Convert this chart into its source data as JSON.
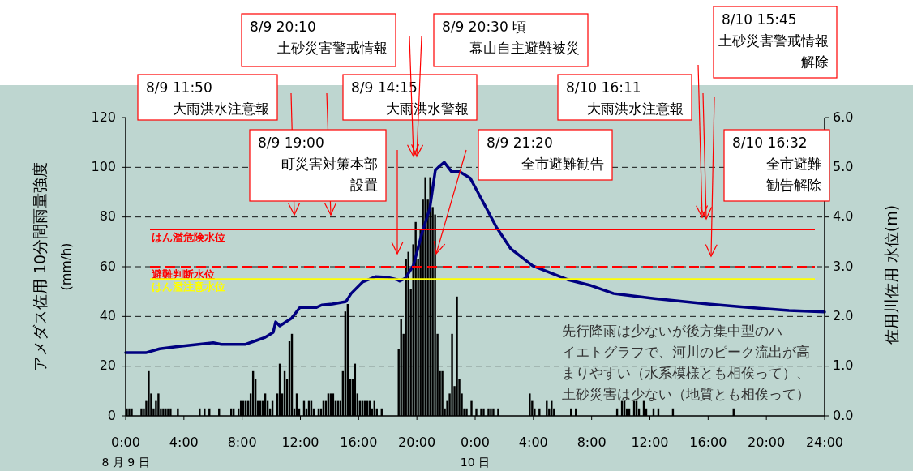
{
  "chart_data": {
    "type": "bar",
    "xlim": [
      "--08-09T00:00",
      "--08-11T00:00"
    ],
    "xticks": [
      {
        "value": "--08-09T00:00",
        "label": "0:00\n8 月 9 日"
      },
      {
        "value": "--08-09T04:00",
        "label": "4:00"
      },
      {
        "value": "--08-09T08:00",
        "label": "8:00"
      },
      {
        "value": "--08-09T12:00",
        "label": "12:00"
      },
      {
        "value": "--08-09T16:00",
        "label": "16:00"
      },
      {
        "value": "--08-09T20:00",
        "label": "20:00"
      },
      {
        "value": "--08-10T00:00",
        "label": "0:00\n10 日"
      },
      {
        "value": "--08-10T04:00",
        "label": "4:00"
      },
      {
        "value": "--08-10T08:00",
        "label": "8:00"
      },
      {
        "value": "--08-10T12:00",
        "label": "12:00"
      },
      {
        "value": "--08-10T16:00",
        "label": "16:00"
      },
      {
        "value": "--08-10T20:00",
        "label": "20:00"
      },
      {
        "value": "--08-11T00:00",
        "label": "24:00"
      }
    ],
    "ylim": [
      0,
      120
    ],
    "yticks": [
      0,
      20,
      40,
      60,
      80,
      100,
      120
    ],
    "y2lim": [
      0,
      6
    ],
    "y2ticks": [
      {
        "value": 0,
        "label": "0.0"
      },
      {
        "value": 1,
        "label": "1.0"
      },
      {
        "value": 2,
        "label": "2.0"
      },
      {
        "value": 3,
        "label": "3.0"
      },
      {
        "value": 4,
        "label": "4.0"
      },
      {
        "value": 5,
        "label": "5.0"
      },
      {
        "value": 6,
        "label": "6.0"
      }
    ],
    "ylabel": "アメダス佐用  10分間雨量強度\n(mm/h)",
    "y2label": "佐用川佐用  水位(m)",
    "grid": "y",
    "series": [
      {
        "color": "#000000",
        "x": [
          "--08-09T00:00",
          "--08-09T00:10",
          "--08-09T00:20",
          "--08-09T01:00",
          "--08-09T01:10",
          "--08-09T01:20",
          "--08-09T01:30",
          "--08-09T01:40",
          "--08-09T01:50",
          "--08-09T02:00",
          "--08-09T02:10",
          "--08-09T02:20",
          "--08-09T02:30",
          "--08-09T02:40",
          "--08-09T02:50",
          "--08-09T03:00",
          "--08-09T03:30",
          "--08-09T05:00",
          "--08-09T05:20",
          "--08-09T05:40",
          "--08-09T06:20",
          "--08-09T07:10",
          "--08-09T07:20",
          "--08-09T07:40",
          "--08-09T07:50",
          "--08-09T08:00",
          "--08-09T08:10",
          "--08-09T08:20",
          "--08-09T08:30",
          "--08-09T08:40",
          "--08-09T08:50",
          "--08-09T09:00",
          "--08-09T09:10",
          "--08-09T09:20",
          "--08-09T09:30",
          "--08-09T09:40",
          "--08-09T09:50",
          "--08-09T10:00",
          "--08-09T10:20",
          "--08-09T10:30",
          "--08-09T10:40",
          "--08-09T10:50",
          "--08-09T11:00",
          "--08-09T11:10",
          "--08-09T11:20",
          "--08-09T11:30",
          "--08-09T11:40",
          "--08-09T11:50",
          "--08-09T12:10",
          "--08-09T12:20",
          "--08-09T12:30",
          "--08-09T12:40",
          "--08-09T12:50",
          "--08-09T13:10",
          "--08-09T13:20",
          "--08-09T13:30",
          "--08-09T13:40",
          "--08-09T13:50",
          "--08-09T14:00",
          "--08-09T14:10",
          "--08-09T14:20",
          "--08-09T14:30",
          "--08-09T14:40",
          "--08-09T14:50",
          "--08-09T15:00",
          "--08-09T15:10",
          "--08-09T15:20",
          "--08-09T15:30",
          "--08-09T15:40",
          "--08-09T15:50",
          "--08-09T16:00",
          "--08-09T16:10",
          "--08-09T16:20",
          "--08-09T16:30",
          "--08-09T16:40",
          "--08-09T16:50",
          "--08-09T17:00",
          "--08-09T17:10",
          "--08-09T17:30",
          "--08-09T18:40",
          "--08-09T18:50",
          "--08-09T19:00",
          "--08-09T19:10",
          "--08-09T19:20",
          "--08-09T19:30",
          "--08-09T19:40",
          "--08-09T19:50",
          "--08-09T20:00",
          "--08-09T20:10",
          "--08-09T20:20",
          "--08-09T20:30",
          "--08-09T20:40",
          "--08-09T20:50",
          "--08-09T21:00",
          "--08-09T21:10",
          "--08-09T21:20",
          "--08-09T21:30",
          "--08-09T21:40",
          "--08-09T21:50",
          "--08-09T22:00",
          "--08-09T22:10",
          "--08-09T22:20",
          "--08-09T22:30",
          "--08-09T22:40",
          "--08-09T22:50",
          "--08-09T23:00",
          "--08-09T23:10",
          "--08-09T23:20",
          "--08-09T23:40",
          "--08-10T00:00",
          "--08-10T00:20",
          "--08-10T00:30",
          "--08-10T00:50",
          "--08-10T01:00",
          "--08-10T01:10",
          "--08-10T01:30",
          "--08-10T03:40",
          "--08-10T03:50",
          "--08-10T04:00",
          "--08-10T04:20",
          "--08-10T04:50",
          "--08-10T05:00",
          "--08-10T05:10",
          "--08-10T05:20",
          "--08-10T06:30",
          "--08-10T06:50",
          "--08-10T09:40",
          "--08-10T10:00",
          "--08-10T10:10",
          "--08-10T10:20",
          "--08-10T10:30",
          "--08-10T10:50",
          "--08-10T11:00",
          "--08-10T11:10",
          "--08-10T11:30",
          "--08-10T11:40",
          "--08-10T12:10",
          "--08-10T12:30",
          "--08-10T13:30",
          "--08-10T17:40"
        ],
        "values": [
          3,
          3,
          3,
          3,
          3,
          6,
          18,
          9,
          3,
          6,
          9,
          3,
          3,
          3,
          3,
          3,
          3,
          3,
          3,
          3,
          3,
          3,
          3,
          3,
          6,
          6,
          6,
          6,
          9,
          18,
          15,
          6,
          6,
          6,
          9,
          6,
          3,
          6,
          9,
          21,
          9,
          18,
          15,
          30,
          33,
          3,
          9,
          3,
          6,
          3,
          6,
          6,
          3,
          3,
          3,
          6,
          6,
          9,
          9,
          9,
          6,
          6,
          6,
          18,
          42,
          45,
          15,
          15,
          21,
          9,
          6,
          6,
          6,
          6,
          6,
          3,
          6,
          3,
          3,
          27,
          39,
          33,
          63,
          66,
          51,
          69,
          78,
          63,
          75,
          87,
          96,
          87,
          96,
          84,
          81,
          33,
          18,
          18,
          3,
          6,
          9,
          33,
          12,
          48,
          15,
          9,
          3,
          3,
          6,
          3,
          3,
          3,
          3,
          3,
          3,
          3,
          9,
          6,
          3,
          3,
          6,
          3,
          6,
          3,
          3,
          3,
          3,
          6,
          6,
          3,
          3,
          6,
          6,
          3,
          6,
          3,
          3,
          3,
          3,
          3
        ]
      },
      {
        "type": "line",
        "axis": "y2",
        "color": "#000080",
        "x": [
          "--08-09T00:00",
          "--08-09T01:23",
          "--08-09T02:20",
          "--08-09T03:27",
          "--08-09T04:44",
          "--08-09T06:01",
          "--08-09T06:34",
          "--08-09T08:14",
          "--08-09T09:01",
          "--08-09T09:35",
          "--08-09T10:08",
          "--08-09T10:18",
          "--08-09T10:35",
          "--08-09T11:25",
          "--08-09T11:58",
          "--08-09T13:05",
          "--08-09T13:28",
          "--08-09T14:12",
          "--08-09T15:08",
          "--08-09T15:29",
          "--08-09T16:16",
          "--08-09T17:09",
          "--08-09T17:56",
          "--08-09T18:39",
          "--08-09T18:49",
          "--08-09T19:13",
          "--08-09T19:46",
          "--08-09T20:19",
          "--08-09T20:53",
          "--08-09T21:16",
          "--08-09T21:33",
          "--08-09T21:53",
          "--08-09T22:23",
          "--08-09T22:56",
          "--08-09T23:40",
          "--08-10T00:13",
          "--08-10T00:47",
          "--08-10T01:27",
          "--08-10T02:27",
          "--08-10T03:57",
          "--08-10T06:21",
          "--08-10T07:51",
          "--08-10T09:31",
          "--08-10T12:18",
          "--08-10T15:59",
          "--08-10T18:46",
          "--08-10T21:33",
          "--08-11T00:00"
        ],
        "values": [
          1.27,
          1.27,
          1.35,
          1.39,
          1.43,
          1.47,
          1.44,
          1.44,
          1.52,
          1.58,
          1.68,
          1.89,
          1.81,
          1.97,
          2.18,
          2.18,
          2.23,
          2.25,
          2.3,
          2.46,
          2.69,
          2.8,
          2.79,
          2.74,
          2.71,
          2.77,
          3.03,
          3.64,
          4.17,
          4.94,
          5.02,
          5.1,
          4.91,
          4.91,
          4.78,
          4.48,
          4.17,
          3.8,
          3.36,
          3.02,
          2.74,
          2.63,
          2.46,
          2.36,
          2.25,
          2.18,
          2.12,
          2.09
        ]
      }
    ],
    "ref_lines": [
      {
        "axis": "y2",
        "value": 3.75,
        "label": "はん濫危険水位",
        "color": "#ff0000",
        "line_style": "solid"
      },
      {
        "axis": "y2",
        "value": 3.0,
        "label": "避難判断水位",
        "color": "#ff0000",
        "line_style": "dashed"
      },
      {
        "axis": "y2",
        "value": 2.75,
        "label": "はん濫注意水位",
        "color": "#ffff00",
        "line_style": "solid"
      }
    ],
    "annotations": [
      "8/9 11:50 大雨洪水注意報",
      "8/9 14:15 大雨洪水警報",
      "8/9 19:00 町災害対策本部設置",
      "8/9 20:10 土砂災害警戒情報",
      "8/9 20:30 頃幕山自主避難被災",
      "8/9 21:20 全市避難勧告",
      "8/10 15:45 土砂災害警戒情報解除",
      "8/10 16:11 大雨洪水注意報",
      "8/10 16:32 全市避難勧告解除",
      "先行降雨は少ないが後方集中型のハイエトグラフで、河川のピーク流出が高まりやすい（水系模様とも相俟って）、土砂災害は少ない（地質とも相俟って）"
    ]
  }
}
